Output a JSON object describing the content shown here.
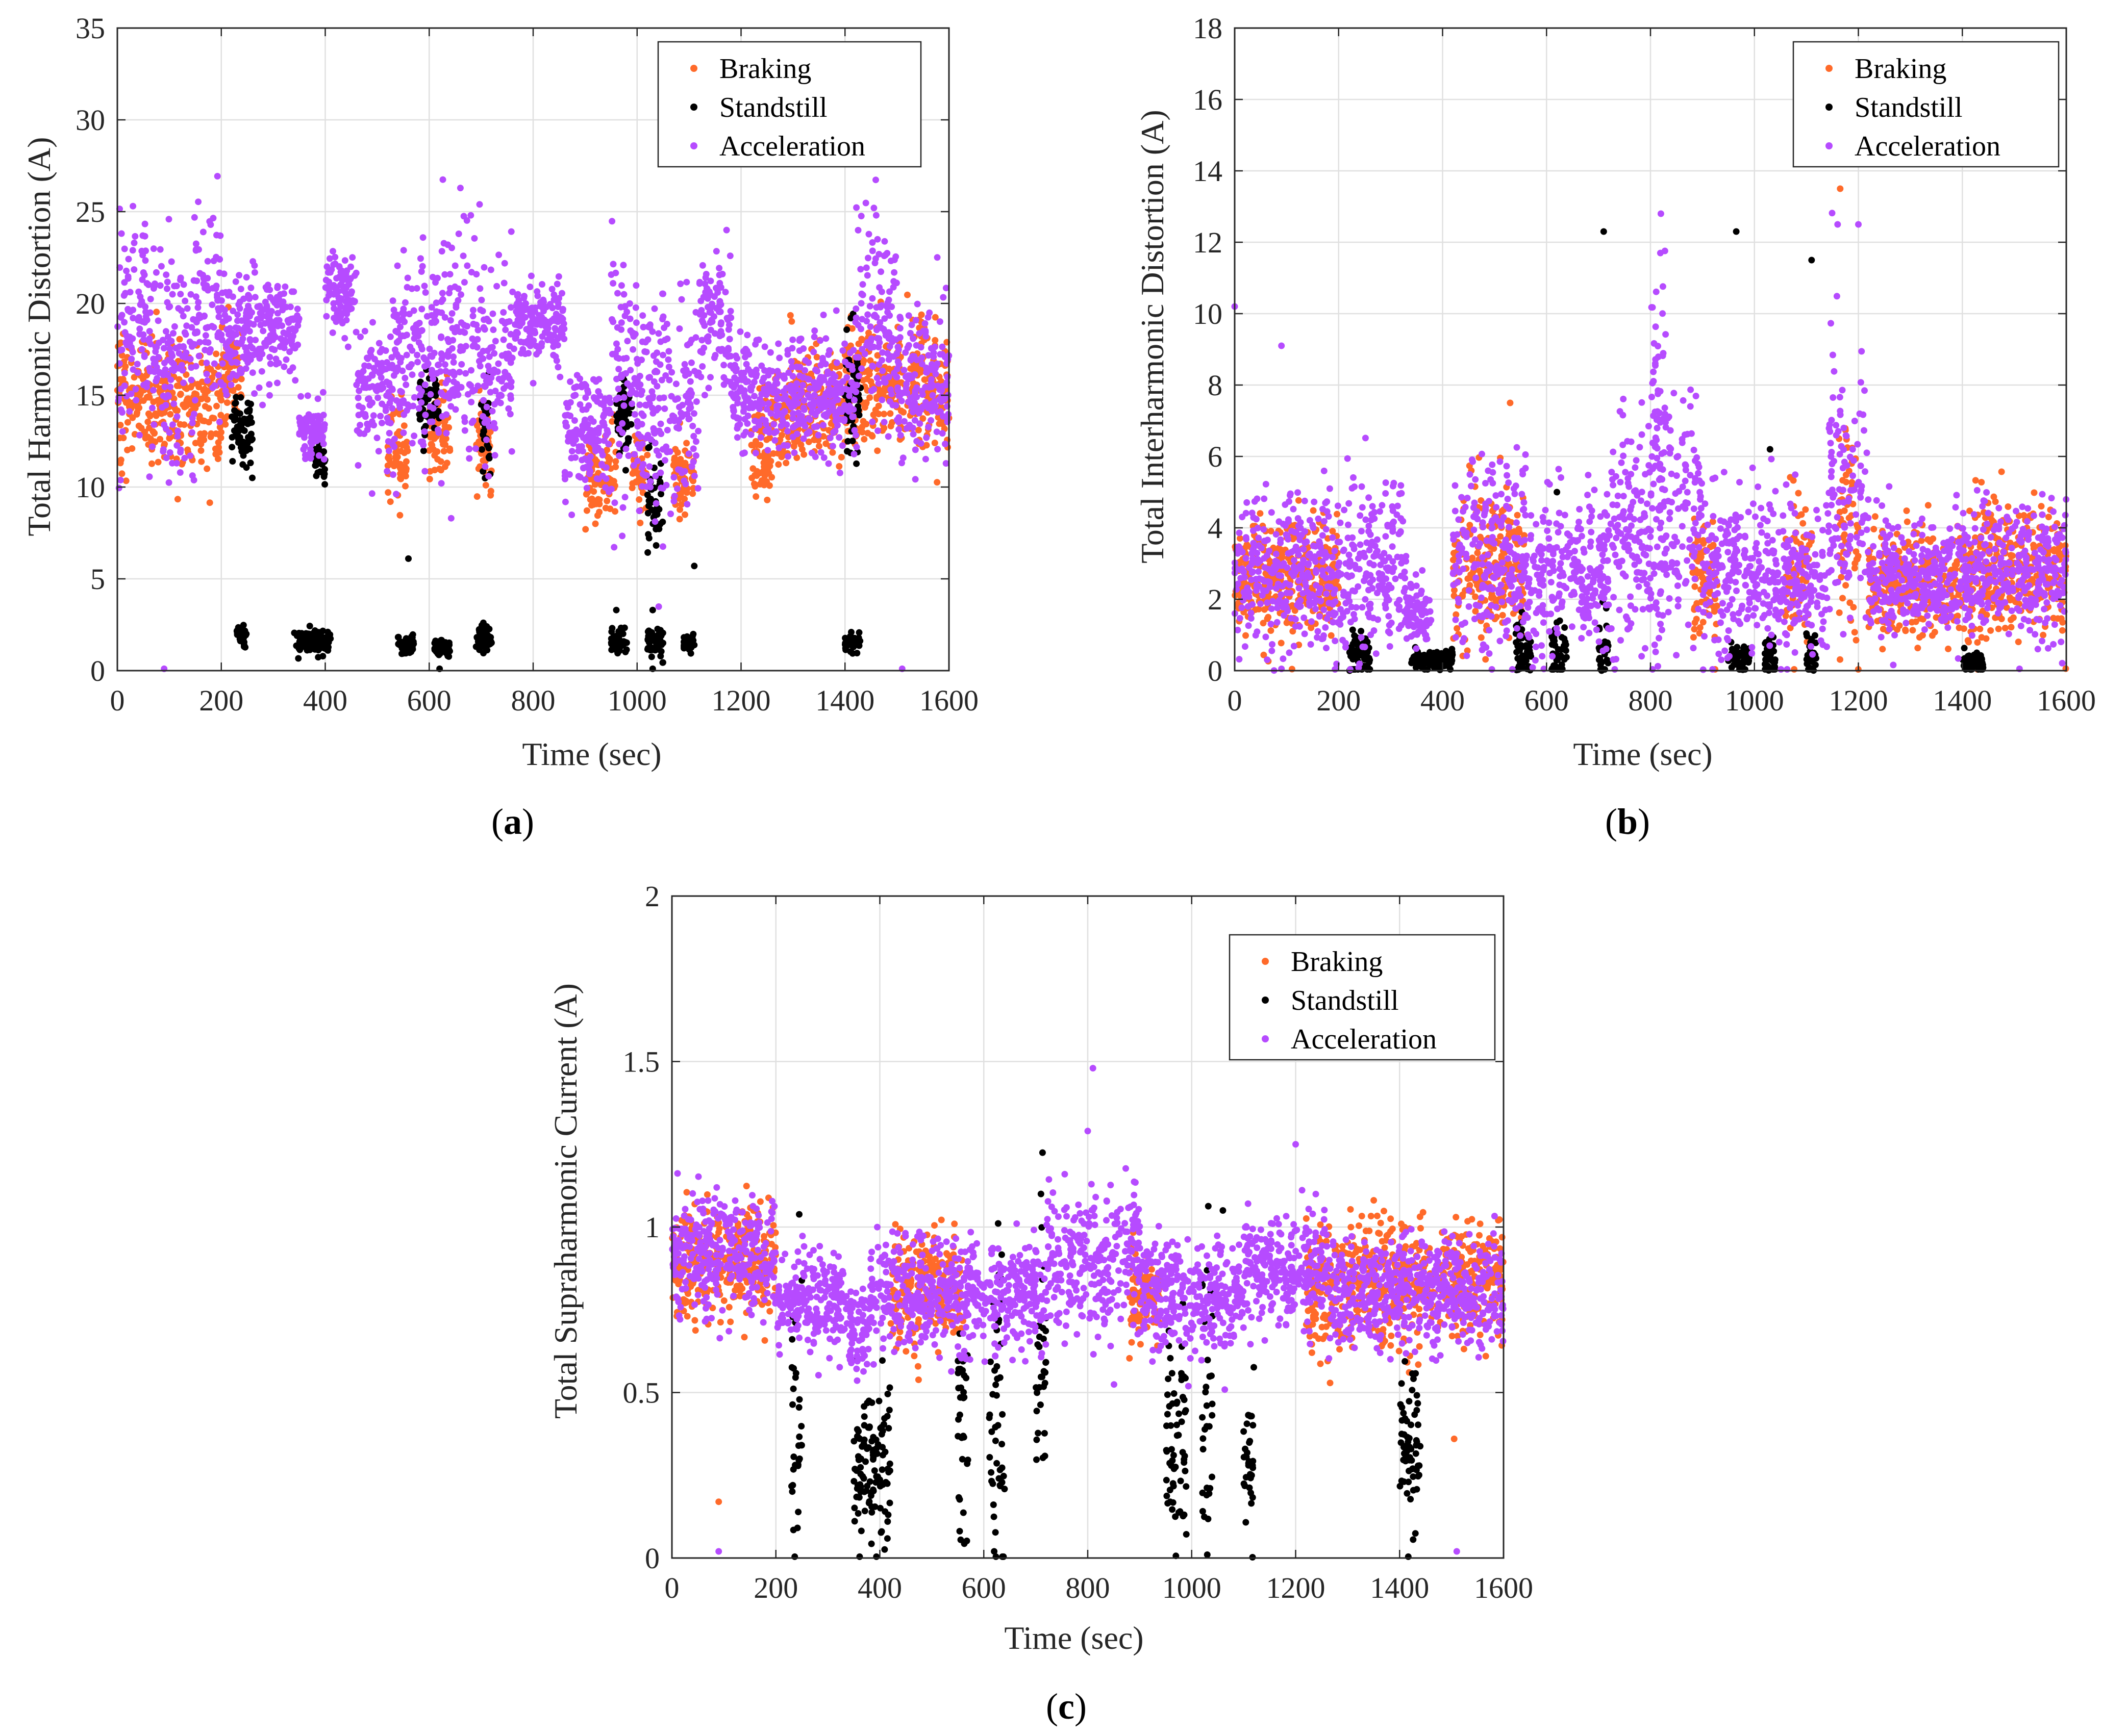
{
  "colors": {
    "braking": "#FF6A2A",
    "standstill": "#000000",
    "acceleration": "#B64BFF",
    "grid": "#E0E0E0",
    "axis": "#262626"
  },
  "chart_data": [
    {
      "id": "a",
      "type": "scatter",
      "panel_label": "a",
      "xlabel": "Time (sec)",
      "ylabel": "Total Harmonic Distortion (A)",
      "xlim": [
        0,
        1600
      ],
      "ylim": [
        0,
        35
      ],
      "xticks": [
        0,
        200,
        400,
        600,
        800,
        1000,
        1200,
        1400,
        1600
      ],
      "yticks": [
        0,
        5,
        10,
        15,
        20,
        25,
        30,
        35
      ],
      "grid": true,
      "legend": {
        "position": "top-right",
        "entries": [
          "Braking",
          "Standstill",
          "Acceleration"
        ]
      },
      "series": [
        {
          "name": "Braking",
          "color": "#FF6A2A",
          "segments": [
            [
              0,
              60,
              15.0,
              2.0
            ],
            [
              60,
              200,
              14.5,
              1.8
            ],
            [
              200,
              240,
              16.0,
              1.5
            ],
            [
              520,
              560,
              12.0,
              1.5
            ],
            [
              600,
              640,
              13.0,
              1.5
            ],
            [
              690,
              720,
              12.0,
              1.5
            ],
            [
              900,
              960,
              10.5,
              1.5
            ],
            [
              990,
              1020,
              11.0,
              1.2
            ],
            [
              1070,
              1110,
              10.5,
              1.2
            ],
            [
              1220,
              1260,
              12.0,
              1.5
            ],
            [
              1260,
              1400,
              14.5,
              1.8
            ],
            [
              1400,
              1600,
              15.5,
              2.0
            ]
          ]
        },
        {
          "name": "Standstill",
          "color": "#000000",
          "segments": [
            [
              230,
              250,
              2.0,
              0.5
            ],
            [
              340,
              410,
              1.6,
              0.4
            ],
            [
              540,
              570,
              1.5,
              0.3
            ],
            [
              610,
              640,
              1.2,
              0.3
            ],
            [
              690,
              720,
              1.8,
              0.5
            ],
            [
              950,
              980,
              1.6,
              0.4
            ],
            [
              1020,
              1050,
              1.5,
              0.5
            ],
            [
              1090,
              1110,
              1.5,
              0.3
            ],
            [
              1400,
              1430,
              1.5,
              0.3
            ],
            [
              220,
              260,
              13.0,
              1.2
            ],
            [
              380,
              400,
              11.5,
              0.8
            ],
            [
              580,
              620,
              14.5,
              1.0
            ],
            [
              700,
              720,
              13.0,
              1.5
            ],
            [
              960,
              990,
              14.0,
              1.5
            ],
            [
              1020,
              1050,
              9.5,
              1.5
            ],
            [
              1400,
              1430,
              15.0,
              2.0
            ]
          ],
          "points": [
            [
              560,
              6.1
            ],
            [
              1110,
              5.7
            ],
            [
              1030,
              0.1
            ],
            [
              620,
              0.1
            ],
            [
              1030,
              3.3
            ],
            [
              960,
              3.3
            ]
          ]
        },
        {
          "name": "Acceleration",
          "color": "#B64BFF",
          "segments": [
            [
              0,
              60,
              19.0,
              3.5
            ],
            [
              60,
              150,
              17.0,
              3.5
            ],
            [
              150,
              210,
              19.5,
              3.0
            ],
            [
              210,
              350,
              18.5,
              1.8
            ],
            [
              350,
              400,
              13.0,
              1.0
            ],
            [
              400,
              460,
              20.5,
              1.6
            ],
            [
              460,
              530,
              15.0,
              2.0
            ],
            [
              530,
              620,
              17.5,
              3.5
            ],
            [
              620,
              700,
              17.5,
              3.8
            ],
            [
              700,
              760,
              16.5,
              3.5
            ],
            [
              760,
              860,
              19.0,
              1.2
            ],
            [
              860,
              950,
              13.0,
              2.0
            ],
            [
              950,
              1000,
              17.0,
              3.5
            ],
            [
              1000,
              1120,
              14.0,
              3.5
            ],
            [
              1120,
              1180,
              19.0,
              2.0
            ],
            [
              1180,
              1260,
              15.0,
              1.8
            ],
            [
              1260,
              1420,
              15.0,
              1.8
            ],
            [
              1420,
              1500,
              19.0,
              3.5
            ],
            [
              1500,
              1600,
              15.5,
              2.5
            ]
          ],
          "points": [
            [
              90,
              0.1
            ],
            [
              1510,
              0.1
            ],
            [
              30,
              25.3
            ],
            [
              680,
              24.8
            ],
            [
              1460,
              24.8
            ]
          ]
        }
      ]
    },
    {
      "id": "b",
      "type": "scatter",
      "panel_label": "b",
      "xlabel": "Time (sec)",
      "ylabel": "Total Interharmonic Distortion (A)",
      "xlim": [
        0,
        1600
      ],
      "ylim": [
        0,
        18
      ],
      "xticks": [
        0,
        200,
        400,
        600,
        800,
        1000,
        1200,
        1400,
        1600
      ],
      "yticks": [
        0,
        2,
        4,
        6,
        8,
        10,
        12,
        14,
        16,
        18
      ],
      "grid": true,
      "legend": {
        "position": "top-right",
        "entries": [
          "Braking",
          "Standstill",
          "Acceleration"
        ]
      },
      "series": [
        {
          "name": "Braking",
          "color": "#FF6A2A",
          "segments": [
            [
              0,
              200,
              2.6,
              1.0
            ],
            [
              420,
              560,
              3.0,
              1.3
            ],
            [
              880,
              930,
              2.5,
              1.0
            ],
            [
              1060,
              1110,
              2.8,
              1.2
            ],
            [
              1160,
              1200,
              4.0,
              2.0
            ],
            [
              1220,
              1420,
              2.4,
              0.9
            ],
            [
              1420,
              1600,
              2.8,
              1.2
            ]
          ],
          "points": [
            [
              1165,
              13.5
            ],
            [
              530,
              7.5
            ]
          ]
        },
        {
          "name": "Standstill",
          "color": "#000000",
          "segments": [
            [
              220,
              260,
              0.5,
              0.4
            ],
            [
              340,
              420,
              0.3,
              0.15
            ],
            [
              540,
              570,
              0.5,
              0.5
            ],
            [
              610,
              640,
              0.5,
              0.5
            ],
            [
              700,
              720,
              0.6,
              0.6
            ],
            [
              950,
              990,
              0.3,
              0.3
            ],
            [
              1020,
              1040,
              0.4,
              0.4
            ],
            [
              1100,
              1120,
              0.4,
              0.4
            ],
            [
              1400,
              1440,
              0.2,
              0.15
            ]
          ],
          "points": [
            [
              710,
              12.3
            ],
            [
              965,
              12.3
            ],
            [
              1110,
              11.5
            ],
            [
              620,
              5.0
            ],
            [
              1030,
              6.2
            ]
          ]
        },
        {
          "name": "Acceleration",
          "color": "#B64BFF",
          "segments": [
            [
              0,
              200,
              2.8,
              1.3
            ],
            [
              200,
              330,
              3.0,
              1.4
            ],
            [
              330,
              380,
              1.5,
              0.6
            ],
            [
              420,
              560,
              3.2,
              1.6
            ],
            [
              560,
              720,
              2.5,
              1.2
            ],
            [
              720,
              900,
              4.0,
              2.0
            ],
            [
              800,
              830,
              7.0,
              2.5
            ],
            [
              900,
              1000,
              2.8,
              1.3
            ],
            [
              1000,
              1140,
              2.5,
              1.2
            ],
            [
              1140,
              1220,
              5.0,
              2.3
            ],
            [
              1220,
              1440,
              2.6,
              0.9
            ],
            [
              1440,
              1600,
              2.8,
              1.1
            ]
          ],
          "points": [
            [
              0,
              10.2
            ],
            [
              90,
              9.1
            ],
            [
              820,
              12.8
            ],
            [
              1160,
              12.5
            ],
            [
              1200,
              12.5
            ],
            [
              90,
              0.05
            ],
            [
              1510,
              0.05
            ]
          ]
        }
      ]
    },
    {
      "id": "c",
      "type": "scatter",
      "panel_label": "c",
      "xlabel": "Time (sec)",
      "ylabel": "Total Supraharmonic Current (A)",
      "xlim": [
        0,
        1600
      ],
      "ylim": [
        0,
        2
      ],
      "xticks": [
        0,
        200,
        400,
        600,
        800,
        1000,
        1200,
        1400,
        1600
      ],
      "yticks": [
        0,
        0.5,
        1,
        1.5,
        2
      ],
      "grid": true,
      "legend": {
        "position": "top-right",
        "entries": [
          "Braking",
          "Standstill",
          "Acceleration"
        ]
      },
      "series": [
        {
          "name": "Braking",
          "color": "#FF6A2A",
          "segments": [
            [
              0,
              200,
              0.9,
              0.1
            ],
            [
              420,
              560,
              0.82,
              0.1
            ],
            [
              880,
              940,
              0.78,
              0.08
            ],
            [
              1220,
              1440,
              0.82,
              0.12
            ],
            [
              1440,
              1600,
              0.85,
              0.1
            ]
          ],
          "points": [
            [
              90,
              0.17
            ],
            [
              1505,
              0.36
            ]
          ]
        },
        {
          "name": "Standstill",
          "color": "#000000",
          "segments": [
            [
              230,
              250,
              0.45,
              0.25
            ],
            [
              350,
              420,
              0.28,
              0.15
            ],
            [
              550,
              570,
              0.42,
              0.25
            ],
            [
              610,
              640,
              0.45,
              0.3
            ],
            [
              700,
              720,
              0.55,
              0.25
            ],
            [
              950,
              990,
              0.35,
              0.2
            ],
            [
              1020,
              1040,
              0.5,
              0.3
            ],
            [
              1100,
              1120,
              0.3,
              0.15
            ],
            [
              1400,
              1440,
              0.32,
              0.15
            ]
          ],
          "points": [
            [
              620,
              0.02
            ],
            [
              1030,
              0.01
            ],
            [
              710,
              1.1
            ],
            [
              1060,
              1.05
            ]
          ]
        },
        {
          "name": "Acceleration",
          "color": "#B64BFF",
          "segments": [
            [
              0,
              200,
              0.92,
              0.1
            ],
            [
              200,
              340,
              0.78,
              0.08
            ],
            [
              340,
              380,
              0.68,
              0.08
            ],
            [
              380,
              560,
              0.8,
              0.1
            ],
            [
              560,
              720,
              0.8,
              0.1
            ],
            [
              720,
              900,
              0.9,
              0.12
            ],
            [
              900,
              1000,
              0.8,
              0.1
            ],
            [
              1000,
              1100,
              0.78,
              0.09
            ],
            [
              1100,
              1260,
              0.88,
              0.1
            ],
            [
              1260,
              1600,
              0.8,
              0.1
            ]
          ],
          "points": [
            [
              810,
              1.48
            ],
            [
              800,
              1.29
            ],
            [
              1200,
              1.25
            ],
            [
              90,
              0.02
            ],
            [
              1510,
              0.02
            ]
          ]
        }
      ]
    }
  ]
}
